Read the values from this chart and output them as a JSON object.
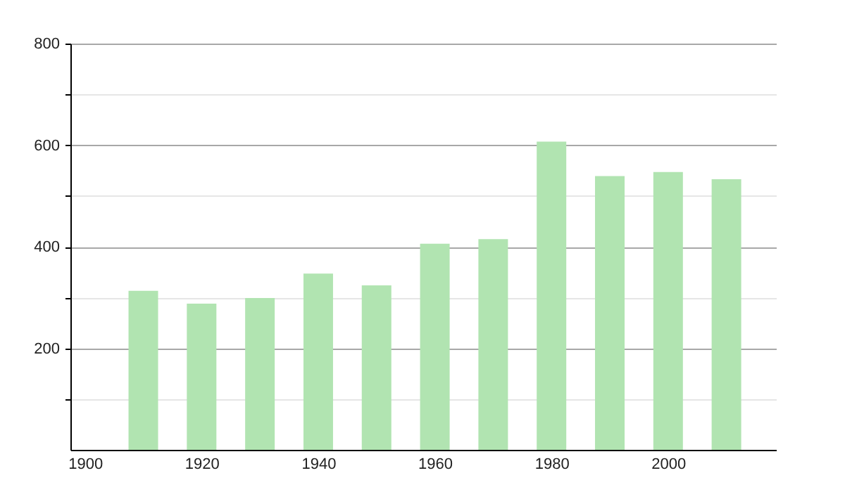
{
  "chart_data": {
    "type": "bar",
    "x": [
      1910,
      1920,
      1930,
      1940,
      1950,
      1960,
      1970,
      1980,
      1990,
      2000,
      2010
    ],
    "series": [
      {
        "color": "#b1e4b1",
        "values": [
          313,
          288,
          299,
          347,
          324,
          406,
          415,
          607,
          539,
          547,
          533
        ]
      }
    ],
    "xlim": [
      1897.5,
      2018.5
    ],
    "xticks": [
      1900,
      1920,
      1940,
      1960,
      1980,
      2000
    ],
    "ylim": [
      0,
      800
    ],
    "yticks": [
      {
        "value": 100,
        "label": null
      },
      200,
      {
        "value": 300,
        "label": null
      },
      400,
      {
        "value": 500,
        "label": null
      },
      600,
      {
        "value": 700,
        "label": null
      },
      800
    ],
    "grid": "y"
  }
}
